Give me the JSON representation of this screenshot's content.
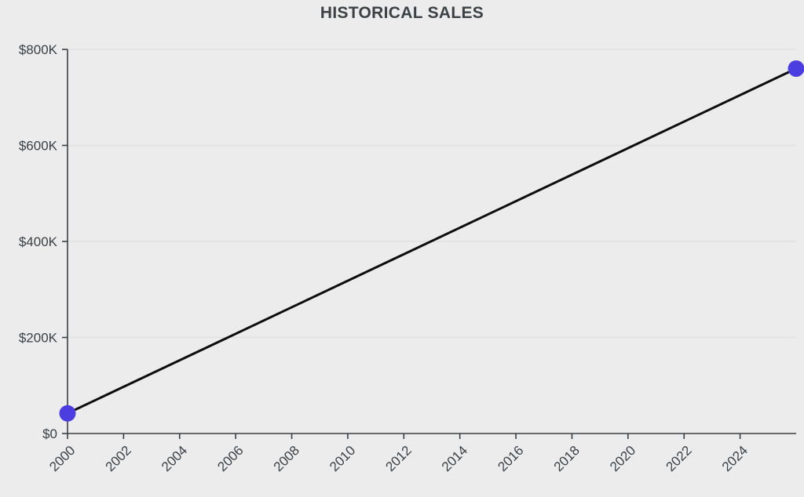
{
  "chart_data": {
    "type": "line",
    "title": "HISTORICAL SALES",
    "xlabel": "",
    "ylabel": "",
    "xlim": [
      2000,
      2026
    ],
    "ylim": [
      0,
      800000
    ],
    "grid": "horizontal",
    "legend": "none",
    "x_tick_rotation": -45,
    "series": [
      {
        "points": [
          {
            "x": 2000,
            "y": 42000
          },
          {
            "x": 2026,
            "y": 760000
          }
        ]
      }
    ],
    "y_ticks": [
      {
        "value": 0,
        "label": "$0"
      },
      {
        "value": 200000,
        "label": "$200K"
      },
      {
        "value": 400000,
        "label": "$400K"
      },
      {
        "value": 600000,
        "label": "$600K"
      },
      {
        "value": 800000,
        "label": "$800K"
      }
    ],
    "x_ticks": [
      {
        "value": 2000,
        "label": "2000"
      },
      {
        "value": 2002,
        "label": "2002"
      },
      {
        "value": 2004,
        "label": "2004"
      },
      {
        "value": 2006,
        "label": "2006"
      },
      {
        "value": 2008,
        "label": "2008"
      },
      {
        "value": 2010,
        "label": "2010"
      },
      {
        "value": 2012,
        "label": "2012"
      },
      {
        "value": 2014,
        "label": "2014"
      },
      {
        "value": 2016,
        "label": "2016"
      },
      {
        "value": 2018,
        "label": "2018"
      },
      {
        "value": 2020,
        "label": "2020"
      },
      {
        "value": 2022,
        "label": "2022"
      },
      {
        "value": 2024,
        "label": "2024"
      }
    ],
    "colors": {
      "background": "#ececec",
      "title": "#3b4144",
      "axis": "#3c3f42",
      "grid": "#e0e0e0",
      "tick_label": "#3b4045",
      "line": "#0d0d0d",
      "point": "#4b3de0"
    }
  }
}
